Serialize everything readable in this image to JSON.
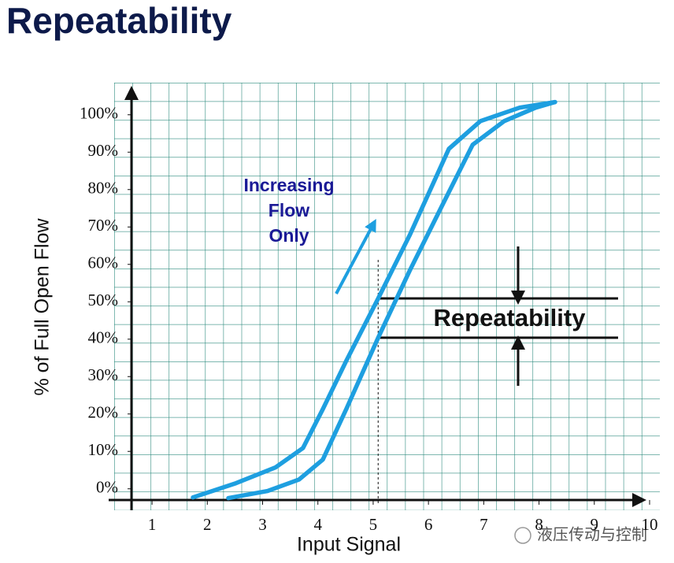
{
  "chart_data": {
    "type": "line",
    "title": "Repeatability",
    "x_label": "Input Signal",
    "y_label": "% of Full Open Flow",
    "annotation_lines": [
      "Increasing",
      "Flow",
      "Only"
    ],
    "band_label": "Repeatability",
    "band_levels": [
      50.9,
      40.4
    ],
    "marker_x": 5.09,
    "watermark": "液压传动与控制",
    "color": "#1e9fe0",
    "xlim": [
      0.6,
      10
    ],
    "ylim": [
      -3,
      109
    ],
    "xticks": [
      1,
      2,
      3,
      4,
      5,
      6,
      7,
      8,
      9,
      10
    ],
    "yticks": [
      {
        "value": 0,
        "label": "0%"
      },
      {
        "value": 10,
        "label": "10%"
      },
      {
        "value": 20,
        "label": "20%"
      },
      {
        "value": 30,
        "label": "30%"
      },
      {
        "value": 40,
        "label": "40%"
      },
      {
        "value": 50,
        "label": "50%"
      },
      {
        "value": 60,
        "label": "60%"
      },
      {
        "value": 70,
        "label": "70%"
      },
      {
        "value": 80,
        "label": "80%"
      },
      {
        "value": 90,
        "label": "90%"
      },
      {
        "value": 100,
        "label": "100%"
      }
    ],
    "series": [
      {
        "x": [
          1.74,
          2.52,
          3.23,
          3.73,
          4.09,
          4.51,
          5.09,
          5.66,
          6.37,
          6.94,
          7.65,
          8.29
        ],
        "values": [
          -2.3,
          1.5,
          5.7,
          10.9,
          21.3,
          34.1,
          50.9,
          67.8,
          90.9,
          98.3,
          101.9,
          103.4
        ]
      },
      {
        "x": [
          2.38,
          3.09,
          3.66,
          4.09,
          4.52,
          5.09,
          5.66,
          6.23,
          6.8,
          7.37,
          7.94,
          8.29
        ],
        "values": [
          -2.5,
          -0.6,
          2.5,
          7.8,
          21.5,
          40.4,
          58.3,
          75.2,
          92.0,
          98.3,
          101.9,
          103.4
        ]
      }
    ]
  }
}
